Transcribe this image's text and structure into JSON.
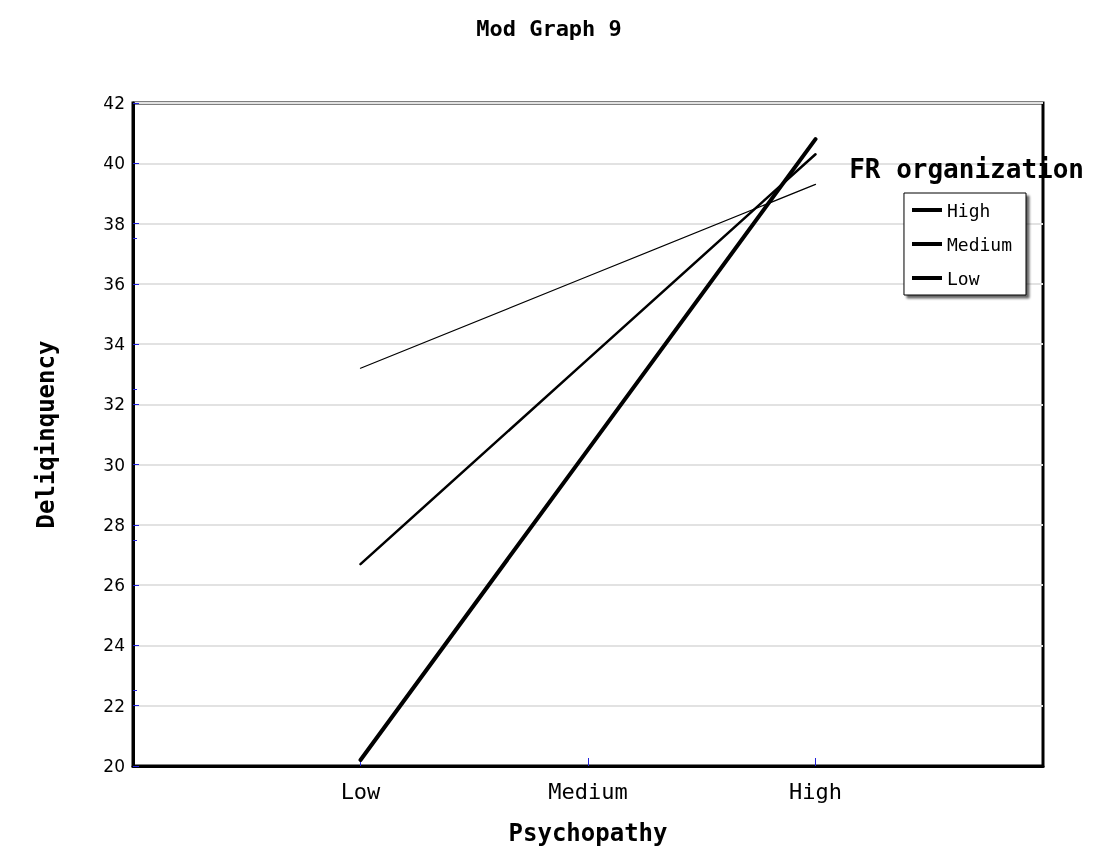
{
  "chart_data": {
    "type": "line",
    "title": "Mod Graph 9",
    "xlabel": "Psychopathy",
    "ylabel": "Deliqinquency",
    "legend_title": "FR organization",
    "categories": [
      "Low",
      "Medium",
      "High"
    ],
    "series": [
      {
        "name": "High",
        "color": "#000000",
        "values": [
          20.2,
          30.5,
          40.8
        ]
      },
      {
        "name": "Medium",
        "color": "#000000",
        "values": [
          26.7,
          33.5,
          40.3
        ]
      },
      {
        "name": "Low",
        "color": "#000000",
        "values": [
          33.2,
          36.25,
          39.3
        ]
      }
    ],
    "ylim": [
      20,
      42
    ],
    "yticks": [
      20,
      22,
      24,
      26,
      28,
      30,
      32,
      34,
      36,
      38,
      40,
      42
    ],
    "grid": "y",
    "legend": "top right",
    "marker": "none",
    "line_style": "solid"
  }
}
